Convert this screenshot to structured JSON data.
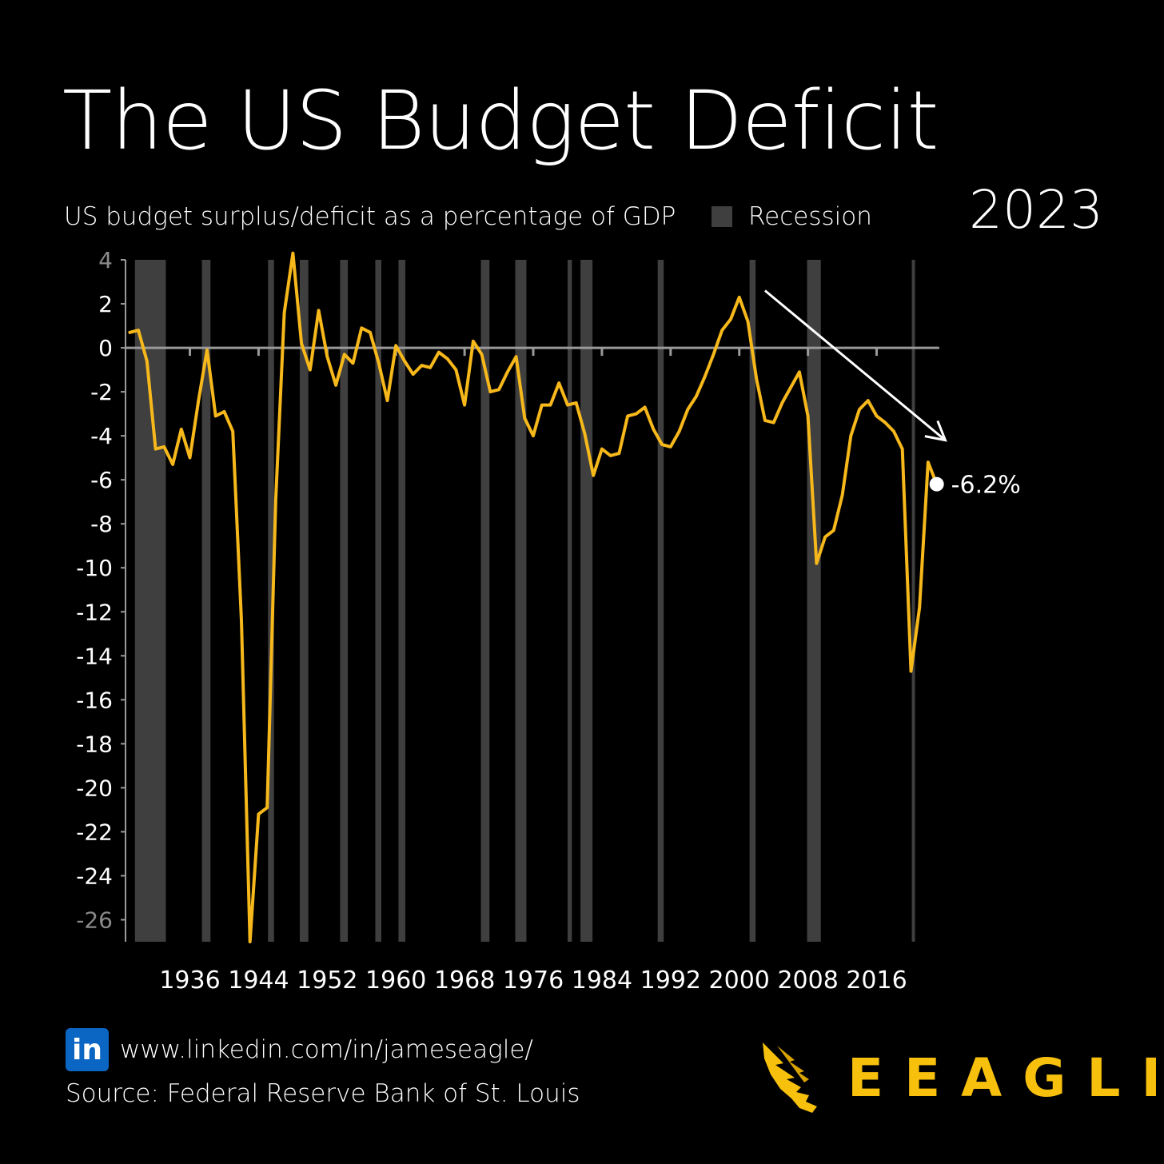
{
  "header": {
    "title": "The US Budget Deficit",
    "year": "2023",
    "subtitle": "US budget surplus/deficit as a percentage of GDP",
    "legend_label": "Recession"
  },
  "footer": {
    "linkedin_icon_text": "in",
    "linkedin_url": "www.linkedin.com/in/jameseagle/",
    "source": "Source: Federal Reserve Bank of St. Louis",
    "brand": "EEAGLI"
  },
  "colors": {
    "background": "#000000",
    "line": "#f6b81b",
    "recession": "#3f3f3f",
    "axis": "#9a9a9a",
    "text": "#ffffff",
    "brand": "#f6c00c",
    "linkedin": "#0a66c2"
  },
  "chart_data": {
    "type": "line",
    "x_range": [
      1929,
      2023
    ],
    "ylim": [
      -27,
      4
    ],
    "yticks": [
      4,
      2,
      0,
      -2,
      -4,
      -6,
      -8,
      -10,
      -12,
      -14,
      -16,
      -18,
      -20,
      -22,
      -24,
      -26
    ],
    "xticks": [
      1936,
      1944,
      1952,
      1960,
      1968,
      1976,
      1984,
      1992,
      2000,
      2008,
      2016
    ],
    "end_label": "-6.2%",
    "trend_arrow": {
      "from": [
        2003,
        2.6
      ],
      "to": [
        2024,
        -4.2
      ]
    },
    "recessions": [
      [
        1929.6,
        1933.2
      ],
      [
        1937.4,
        1938.4
      ],
      [
        1945.1,
        1945.8
      ],
      [
        1948.8,
        1949.8
      ],
      [
        1953.5,
        1954.4
      ],
      [
        1957.6,
        1958.3
      ],
      [
        1960.3,
        1961.1
      ],
      [
        1969.9,
        1970.9
      ],
      [
        1973.9,
        1975.2
      ],
      [
        1980.0,
        1980.5
      ],
      [
        1981.5,
        1982.9
      ],
      [
        1990.5,
        1991.2
      ],
      [
        2001.2,
        2001.9
      ],
      [
        2007.9,
        2009.5
      ],
      [
        2020.1,
        2020.3
      ]
    ],
    "series": [
      {
        "x": [
          1929,
          1930,
          1931,
          1932,
          1933,
          1934,
          1935,
          1936,
          1937,
          1938,
          1939,
          1940,
          1941,
          1942,
          1943,
          1944,
          1945,
          1946,
          1947,
          1948,
          1949,
          1950,
          1951,
          1952,
          1953,
          1954,
          1955,
          1956,
          1957,
          1958,
          1959,
          1960,
          1961,
          1962,
          1963,
          1964,
          1965,
          1966,
          1967,
          1968,
          1969,
          1970,
          1971,
          1972,
          1973,
          1974,
          1975,
          1976,
          1977,
          1978,
          1979,
          1980,
          1981,
          1982,
          1983,
          1984,
          1985,
          1986,
          1987,
          1988,
          1989,
          1990,
          1991,
          1992,
          1993,
          1994,
          1995,
          1996,
          1997,
          1998,
          1999,
          2000,
          2001,
          2002,
          2003,
          2004,
          2005,
          2006,
          2007,
          2008,
          2009,
          2010,
          2011,
          2012,
          2013,
          2014,
          2015,
          2016,
          2017,
          2018,
          2019,
          2020,
          2021,
          2022,
          2023
        ],
        "values": [
          0.7,
          0.8,
          -0.6,
          -4.6,
          -4.5,
          -5.3,
          -3.7,
          -5.0,
          -2.4,
          -0.1,
          -3.1,
          -2.9,
          -3.8,
          -12.4,
          -27.0,
          -21.2,
          -20.9,
          -6.9,
          1.6,
          4.3,
          0.2,
          -1.0,
          1.7,
          -0.4,
          -1.7,
          -0.3,
          -0.7,
          0.9,
          0.7,
          -0.7,
          -2.4,
          0.1,
          -0.6,
          -1.2,
          -0.8,
          -0.9,
          -0.2,
          -0.5,
          -1.0,
          -2.6,
          0.3,
          -0.3,
          -2.0,
          -1.9,
          -1.1,
          -0.4,
          -3.2,
          -4.0,
          -2.6,
          -2.6,
          -1.6,
          -2.6,
          -2.5,
          -3.9,
          -5.8,
          -4.6,
          -4.9,
          -4.8,
          -3.1,
          -3.0,
          -2.7,
          -3.7,
          -4.4,
          -4.5,
          -3.8,
          -2.8,
          -2.2,
          -1.3,
          -0.3,
          0.8,
          1.3,
          2.3,
          1.2,
          -1.4,
          -3.3,
          -3.4,
          -2.5,
          -1.8,
          -1.1,
          -3.1,
          -9.8,
          -8.6,
          -8.3,
          -6.7,
          -4.0,
          -2.8,
          -2.4,
          -3.1,
          -3.4,
          -3.8,
          -4.6,
          -14.7,
          -11.8,
          -5.2,
          -6.2
        ]
      }
    ]
  }
}
